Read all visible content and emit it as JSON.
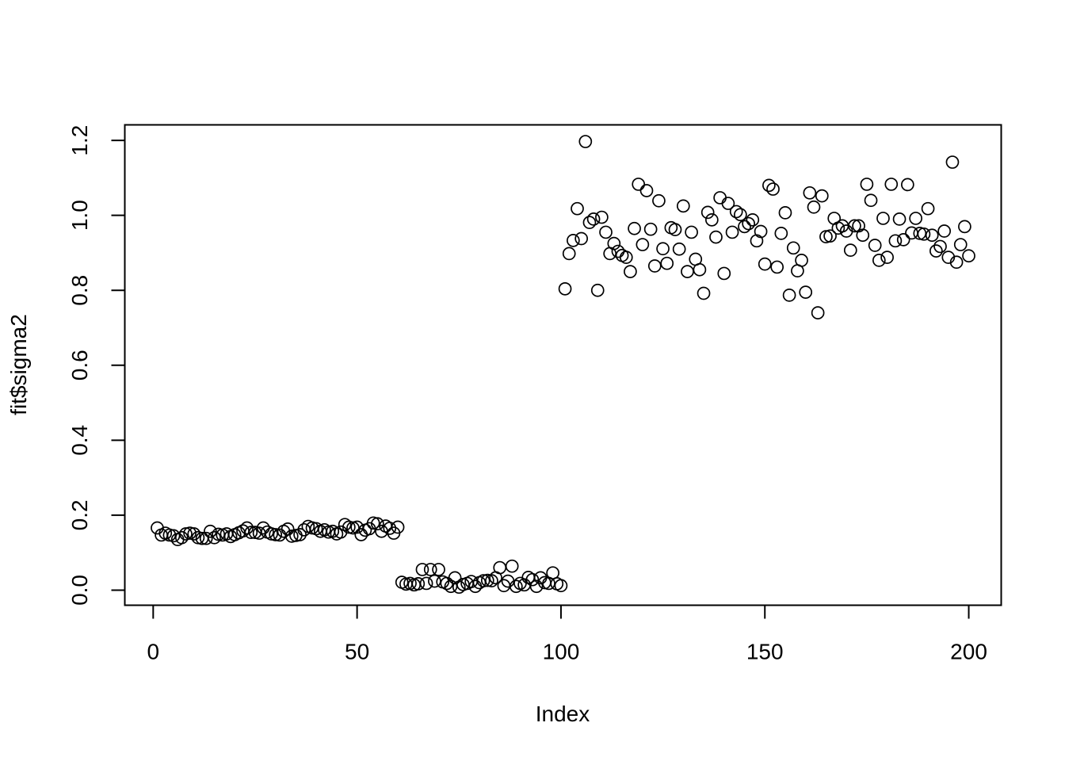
{
  "chart_data": {
    "type": "scatter",
    "title": "",
    "xlabel": "Index",
    "ylabel": "fit$sigma2",
    "xlim": [
      -6.96,
      207.96
    ],
    "ylim": [
      -0.0403,
      1.2415
    ],
    "xticks": [
      0,
      50,
      100,
      150,
      200
    ],
    "xtick_labels": [
      "0",
      "50",
      "100",
      "150",
      "200"
    ],
    "yticks": [
      0.0,
      0.2,
      0.4,
      0.6,
      0.8,
      1.0,
      1.2
    ],
    "ytick_labels": [
      "0.0",
      "0.2",
      "0.4",
      "0.6",
      "0.8",
      "1.0",
      "1.2"
    ],
    "grid": false,
    "legend": "none",
    "marker": "open-circle",
    "colors": {
      "points": "#000000",
      "axes": "#000000",
      "background": "#ffffff"
    },
    "series": [
      {
        "x": [
          1,
          2,
          3,
          4,
          5,
          6,
          7,
          8,
          9,
          10,
          11,
          12,
          13,
          14,
          15,
          16,
          17,
          18,
          19,
          20,
          21,
          22,
          23,
          24,
          25,
          26,
          27,
          28,
          29,
          30,
          31,
          32,
          33,
          34,
          35,
          36,
          37,
          38,
          39,
          40,
          41,
          42,
          43,
          44,
          45,
          46,
          47,
          48,
          49,
          50,
          51,
          52,
          53,
          54,
          55,
          56,
          57,
          58,
          59,
          60,
          61,
          62,
          63,
          64,
          65,
          66,
          67,
          68,
          69,
          70,
          71,
          72,
          73,
          74,
          75,
          76,
          77,
          78,
          79,
          80,
          81,
          82,
          83,
          84,
          85,
          86,
          87,
          88,
          89,
          90,
          91,
          92,
          93,
          94,
          95,
          96,
          97,
          98,
          99,
          100,
          101,
          102,
          103,
          104,
          105,
          106,
          107,
          108,
          109,
          110,
          111,
          112,
          113,
          114,
          115,
          116,
          117,
          118,
          119,
          120,
          121,
          122,
          123,
          124,
          125,
          126,
          127,
          128,
          129,
          130,
          131,
          132,
          133,
          134,
          135,
          136,
          137,
          138,
          139,
          140,
          141,
          142,
          143,
          144,
          145,
          146,
          147,
          148,
          149,
          150,
          151,
          152,
          153,
          154,
          155,
          156,
          157,
          158,
          159,
          160,
          161,
          162,
          163,
          164,
          165,
          166,
          167,
          168,
          169,
          170,
          171,
          172,
          173,
          174,
          175,
          176,
          177,
          178,
          179,
          180,
          181,
          182,
          183,
          184,
          185,
          186,
          187,
          188,
          189,
          190,
          191,
          192,
          193,
          194,
          195,
          196,
          197,
          198,
          199,
          200
        ],
        "y": [
          0.166,
          0.147,
          0.152,
          0.147,
          0.145,
          0.135,
          0.14,
          0.15,
          0.152,
          0.15,
          0.14,
          0.138,
          0.138,
          0.157,
          0.14,
          0.149,
          0.147,
          0.15,
          0.143,
          0.148,
          0.153,
          0.158,
          0.166,
          0.154,
          0.154,
          0.152,
          0.166,
          0.155,
          0.15,
          0.148,
          0.147,
          0.157,
          0.163,
          0.144,
          0.146,
          0.148,
          0.161,
          0.17,
          0.166,
          0.164,
          0.157,
          0.161,
          0.155,
          0.157,
          0.15,
          0.155,
          0.175,
          0.168,
          0.166,
          0.168,
          0.148,
          0.16,
          0.164,
          0.179,
          0.177,
          0.157,
          0.171,
          0.165,
          0.152,
          0.168,
          0.021,
          0.016,
          0.018,
          0.014,
          0.017,
          0.055,
          0.018,
          0.055,
          0.024,
          0.055,
          0.022,
          0.018,
          0.01,
          0.033,
          0.008,
          0.015,
          0.018,
          0.023,
          0.01,
          0.02,
          0.025,
          0.026,
          0.025,
          0.033,
          0.06,
          0.012,
          0.024,
          0.064,
          0.01,
          0.018,
          0.014,
          0.034,
          0.028,
          0.01,
          0.033,
          0.02,
          0.018,
          0.046,
          0.017,
          0.012,
          0.804,
          0.898,
          0.933,
          1.018,
          0.938,
          1.197,
          0.981,
          0.99,
          0.8,
          0.995,
          0.955,
          0.898,
          0.925,
          0.904,
          0.893,
          0.888,
          0.85,
          0.965,
          1.083,
          0.922,
          1.066,
          0.963,
          0.865,
          1.039,
          0.911,
          0.872,
          0.967,
          0.962,
          0.91,
          1.025,
          0.85,
          0.955,
          0.883,
          0.855,
          0.792,
          1.008,
          0.988,
          0.942,
          1.047,
          0.845,
          1.032,
          0.955,
          1.01,
          1.002,
          0.97,
          0.978,
          0.988,
          0.932,
          0.957,
          0.87,
          1.08,
          1.07,
          0.862,
          0.952,
          1.007,
          0.787,
          0.913,
          0.852,
          0.88,
          0.795,
          1.06,
          1.022,
          0.74,
          1.052,
          0.943,
          0.945,
          0.992,
          0.966,
          0.972,
          0.958,
          0.907,
          0.972,
          0.972,
          0.947,
          1.083,
          1.04,
          0.92,
          0.88,
          0.992,
          0.888,
          1.083,
          0.932,
          0.99,
          0.935,
          1.082,
          0.953,
          0.992,
          0.952,
          0.95,
          1.018,
          0.947,
          0.905,
          0.917,
          0.958,
          0.888,
          1.142,
          0.875,
          0.922,
          0.97,
          0.892
        ]
      }
    ]
  }
}
